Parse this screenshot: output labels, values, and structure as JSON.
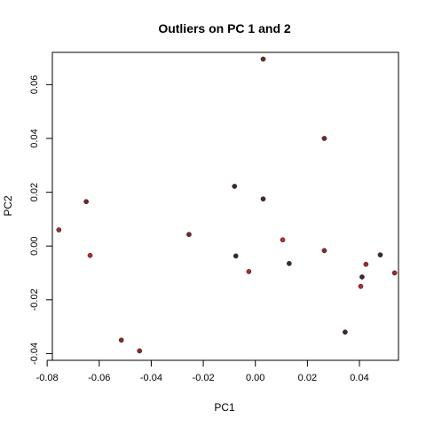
{
  "chart_data": {
    "type": "scatter",
    "title": "Outliers on PC 1 and 2",
    "xlabel": "PC1",
    "ylabel": "PC2",
    "xlim": [
      -0.078,
      0.055
    ],
    "ylim": [
      -0.0425,
      0.072
    ],
    "x_ticks": [
      -0.08,
      -0.06,
      -0.04,
      -0.02,
      0.0,
      0.02,
      0.04
    ],
    "x_tick_labels": [
      "-0.08",
      "-0.06",
      "-0.04",
      "-0.02",
      "0.00",
      "0.02",
      "0.04"
    ],
    "y_ticks": [
      -0.04,
      -0.02,
      0.0,
      0.02,
      0.04,
      0.06
    ],
    "y_tick_labels": [
      "-0.04",
      "-0.02",
      "0.00",
      "0.02",
      "0.04",
      "0.06"
    ],
    "grid": false,
    "legend": "none",
    "points": [
      {
        "x": 0.003,
        "y": 0.0695,
        "color": "#6b2a2a"
      },
      {
        "x": 0.0265,
        "y": 0.04,
        "color": "#6b2a2a"
      },
      {
        "x": -0.008,
        "y": 0.0222,
        "color": "#3a2a2a"
      },
      {
        "x": 0.003,
        "y": 0.0175,
        "color": "#4a2a2a"
      },
      {
        "x": -0.065,
        "y": 0.0165,
        "color": "#6b2a2a"
      },
      {
        "x": -0.0755,
        "y": 0.006,
        "color": "#a32a2a"
      },
      {
        "x": -0.0255,
        "y": 0.0043,
        "color": "#6b2a2a"
      },
      {
        "x": 0.0105,
        "y": 0.0023,
        "color": "#c02a2a"
      },
      {
        "x": -0.0635,
        "y": -0.0035,
        "color": "#c02a2a"
      },
      {
        "x": -0.0075,
        "y": -0.0037,
        "color": "#3a2a2a"
      },
      {
        "x": 0.0265,
        "y": -0.0017,
        "color": "#8b2a2a"
      },
      {
        "x": 0.048,
        "y": -0.0033,
        "color": "#3a2a2a"
      },
      {
        "x": 0.013,
        "y": -0.0065,
        "color": "#3a2a2a"
      },
      {
        "x": 0.0425,
        "y": -0.0068,
        "color": "#a32a2a"
      },
      {
        "x": -0.0025,
        "y": -0.0095,
        "color": "#b22a2a"
      },
      {
        "x": 0.0535,
        "y": -0.01,
        "color": "#a32a2a"
      },
      {
        "x": 0.041,
        "y": -0.0115,
        "color": "#3a2a2a"
      },
      {
        "x": 0.0405,
        "y": -0.015,
        "color": "#b22a2a"
      },
      {
        "x": 0.0345,
        "y": -0.032,
        "color": "#3a2a2a"
      },
      {
        "x": -0.0515,
        "y": -0.035,
        "color": "#8b2a2a"
      },
      {
        "x": -0.0445,
        "y": -0.039,
        "color": "#8b2a2a"
      }
    ]
  }
}
